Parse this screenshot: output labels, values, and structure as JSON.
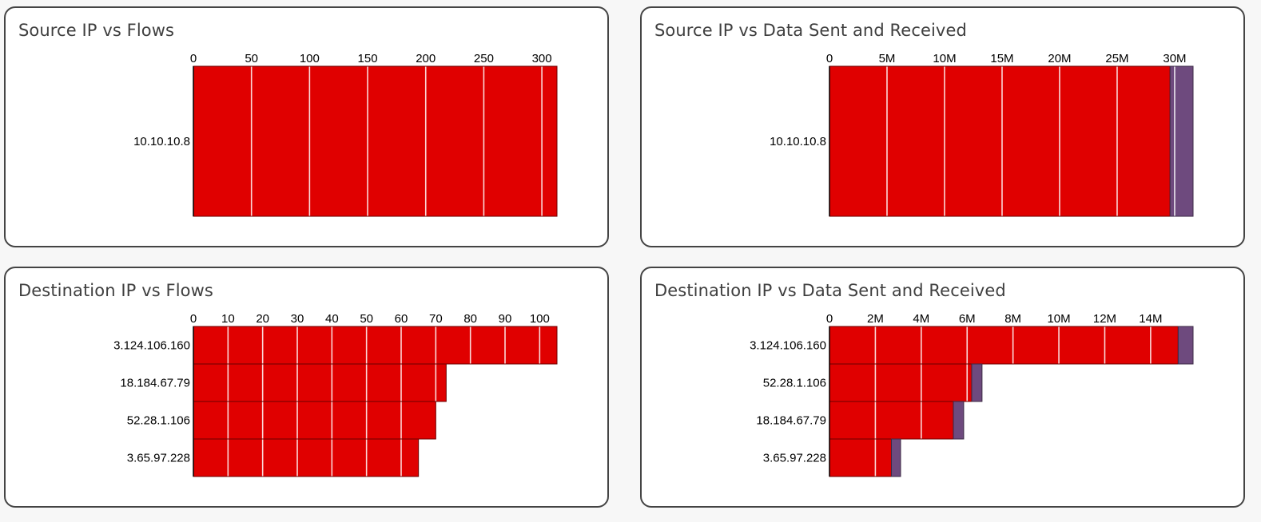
{
  "colors": {
    "primary": "#e00000",
    "secondary": "#6e4a7e",
    "bar_stroke": "#6a0000",
    "secondary_stroke": "#3b2a44",
    "gridline": "#ffffff",
    "axis": "#000000"
  },
  "chart_data": [
    {
      "type": "bar",
      "orientation": "horizontal",
      "stacked": true,
      "title": "Source IP vs Flows",
      "categories": [
        "10.10.10.8"
      ],
      "series": [
        {
          "values": [
            313
          ]
        }
      ],
      "xlim": [
        0,
        313
      ],
      "xticks": [
        0,
        50,
        100,
        150,
        200,
        250,
        300
      ],
      "xtick_labels": [
        "0",
        "50",
        "100",
        "150",
        "200",
        "250",
        "300"
      ],
      "grid": true
    },
    {
      "type": "bar",
      "orientation": "horizontal",
      "stacked": true,
      "title": "Source IP vs Data Sent and Received",
      "categories": [
        "10.10.10.8"
      ],
      "series": [
        {
          "values": [
            29600000
          ]
        },
        {
          "values": [
            2000000
          ]
        }
      ],
      "xlim": [
        0,
        31600000
      ],
      "xticks": [
        0,
        5000000,
        10000000,
        15000000,
        20000000,
        25000000,
        30000000
      ],
      "xtick_labels": [
        "0",
        "5M",
        "10M",
        "15M",
        "20M",
        "25M",
        "30M"
      ],
      "grid": true
    },
    {
      "type": "bar",
      "orientation": "horizontal",
      "stacked": true,
      "title": "Destination IP vs Flows",
      "categories": [
        "3.124.106.160",
        "18.184.67.79",
        "52.28.1.106",
        "3.65.97.228"
      ],
      "series": [
        {
          "values": [
            105,
            73,
            70,
            65
          ]
        }
      ],
      "xlim": [
        0,
        105
      ],
      "xticks": [
        0,
        10,
        20,
        30,
        40,
        50,
        60,
        70,
        80,
        90,
        100
      ],
      "xtick_labels": [
        "0",
        "10",
        "20",
        "30",
        "40",
        "50",
        "60",
        "70",
        "80",
        "90",
        "100"
      ],
      "grid": true
    },
    {
      "type": "bar",
      "orientation": "horizontal",
      "stacked": true,
      "title": "Destination IP vs Data Sent and Received",
      "categories": [
        "3.124.106.160",
        "52.28.1.106",
        "18.184.67.79",
        "3.65.97.228"
      ],
      "series": [
        {
          "values": [
            15200000,
            6200000,
            5400000,
            2700000
          ]
        },
        {
          "values": [
            650000,
            450000,
            450000,
            400000
          ]
        }
      ],
      "xlim": [
        0,
        15850000
      ],
      "xticks": [
        0,
        2000000,
        4000000,
        6000000,
        8000000,
        10000000,
        12000000,
        14000000
      ],
      "xtick_labels": [
        "0",
        "2M",
        "4M",
        "6M",
        "8M",
        "10M",
        "12M",
        "14M"
      ],
      "grid": true
    }
  ]
}
